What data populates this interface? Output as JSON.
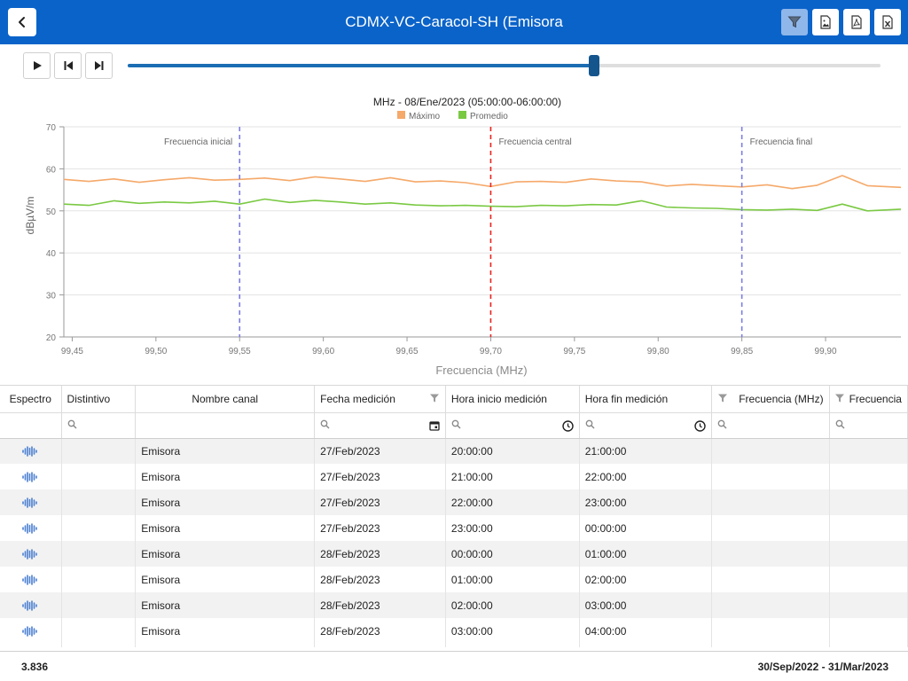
{
  "header": {
    "title": "CDMX-VC-Caracol-SH (Emisora",
    "buttons": [
      "filter-icon",
      "image-export-icon",
      "pdf-export-icon",
      "excel-export-icon"
    ],
    "color": "#0a63c9"
  },
  "player": {
    "progress": 0.62
  },
  "chart_data": {
    "type": "line",
    "title": "MHz - 08/Ene/2023 (05:00:00-06:00:00)",
    "xlabel": "Frecuencia (MHz)",
    "ylabel": "dBµV/m",
    "xlim": [
      99.445,
      99.945
    ],
    "ylim": [
      20,
      70
    ],
    "xticks": [
      "99,45",
      "99,50",
      "99,55",
      "99,60",
      "99,65",
      "99,70",
      "99,75",
      "99,80",
      "99,85",
      "99,90"
    ],
    "yticks": [
      "20",
      "30",
      "40",
      "50",
      "60",
      "70"
    ],
    "legend": {
      "position": "top-center"
    },
    "series": [
      {
        "name": "Máximo",
        "color": "#f5a96a",
        "x": [
          99.445,
          99.46,
          99.475,
          99.49,
          99.505,
          99.52,
          99.535,
          99.55,
          99.565,
          99.58,
          99.595,
          99.61,
          99.625,
          99.64,
          99.655,
          99.67,
          99.685,
          99.7,
          99.715,
          99.73,
          99.745,
          99.76,
          99.775,
          99.79,
          99.805,
          99.82,
          99.835,
          99.85,
          99.865,
          99.88,
          99.895,
          99.91,
          99.925,
          99.945
        ],
        "y": [
          57.5,
          57.0,
          57.6,
          56.8,
          57.4,
          57.9,
          57.3,
          57.5,
          57.8,
          57.2,
          58.1,
          57.6,
          57.0,
          57.9,
          56.9,
          57.1,
          56.7,
          55.8,
          56.9,
          57.0,
          56.8,
          57.6,
          57.1,
          56.9,
          55.9,
          56.3,
          56.0,
          55.7,
          56.2,
          55.3,
          56.1,
          58.4,
          56.0,
          55.6
        ]
      },
      {
        "name": "Promedio",
        "color": "#7ac943",
        "x": [
          99.445,
          99.46,
          99.475,
          99.49,
          99.505,
          99.52,
          99.535,
          99.55,
          99.565,
          99.58,
          99.595,
          99.61,
          99.625,
          99.64,
          99.655,
          99.67,
          99.685,
          99.7,
          99.715,
          99.73,
          99.745,
          99.76,
          99.775,
          99.79,
          99.805,
          99.82,
          99.835,
          99.85,
          99.865,
          99.88,
          99.895,
          99.91,
          99.925,
          99.945
        ],
        "y": [
          51.6,
          51.3,
          52.4,
          51.8,
          52.1,
          51.9,
          52.3,
          51.6,
          52.8,
          52.0,
          52.5,
          52.1,
          51.6,
          51.9,
          51.4,
          51.2,
          51.3,
          51.1,
          51.0,
          51.3,
          51.2,
          51.5,
          51.4,
          52.4,
          50.9,
          50.7,
          50.6,
          50.3,
          50.2,
          50.4,
          50.1,
          51.6,
          50.0,
          50.4
        ]
      }
    ],
    "markers": [
      {
        "x": 99.55,
        "label": "Frecuencia inicial",
        "color": "#7b7ee3"
      },
      {
        "x": 99.7,
        "label": "Frecuencia central",
        "color": "#e8231f"
      },
      {
        "x": 99.85,
        "label": "Frecuencia final",
        "color": "#7b7ee3"
      }
    ],
    "grid": true
  },
  "table": {
    "columns": [
      {
        "label": "Espectro",
        "filter": ""
      },
      {
        "label": "Distintivo",
        "filter": "search"
      },
      {
        "label": "Nombre canal",
        "filter": ""
      },
      {
        "label": "Fecha medición",
        "filter": "search-date"
      },
      {
        "label": "Hora inicio medición",
        "filter": "search-time"
      },
      {
        "label": "Hora fin medición",
        "filter": "search-time"
      },
      {
        "label": "Frecuencia (MHz)",
        "filter": "search"
      },
      {
        "label": "Frecuencia",
        "filter": "search"
      }
    ],
    "rows": [
      {
        "canal": "Emisora",
        "fecha": "27/Feb/2023",
        "inicio": "20:00:00",
        "fin": "21:00:00"
      },
      {
        "canal": "Emisora",
        "fecha": "27/Feb/2023",
        "inicio": "21:00:00",
        "fin": "22:00:00"
      },
      {
        "canal": "Emisora",
        "fecha": "27/Feb/2023",
        "inicio": "22:00:00",
        "fin": "23:00:00"
      },
      {
        "canal": "Emisora",
        "fecha": "27/Feb/2023",
        "inicio": "23:00:00",
        "fin": "00:00:00"
      },
      {
        "canal": "Emisora",
        "fecha": "28/Feb/2023",
        "inicio": "00:00:00",
        "fin": "01:00:00"
      },
      {
        "canal": "Emisora",
        "fecha": "28/Feb/2023",
        "inicio": "01:00:00",
        "fin": "02:00:00"
      },
      {
        "canal": "Emisora",
        "fecha": "28/Feb/2023",
        "inicio": "02:00:00",
        "fin": "03:00:00"
      },
      {
        "canal": "Emisora",
        "fecha": "28/Feb/2023",
        "inicio": "03:00:00",
        "fin": "04:00:00"
      }
    ]
  },
  "footer": {
    "count": "3.836",
    "range": "30/Sep/2022 - 31/Mar/2023"
  }
}
